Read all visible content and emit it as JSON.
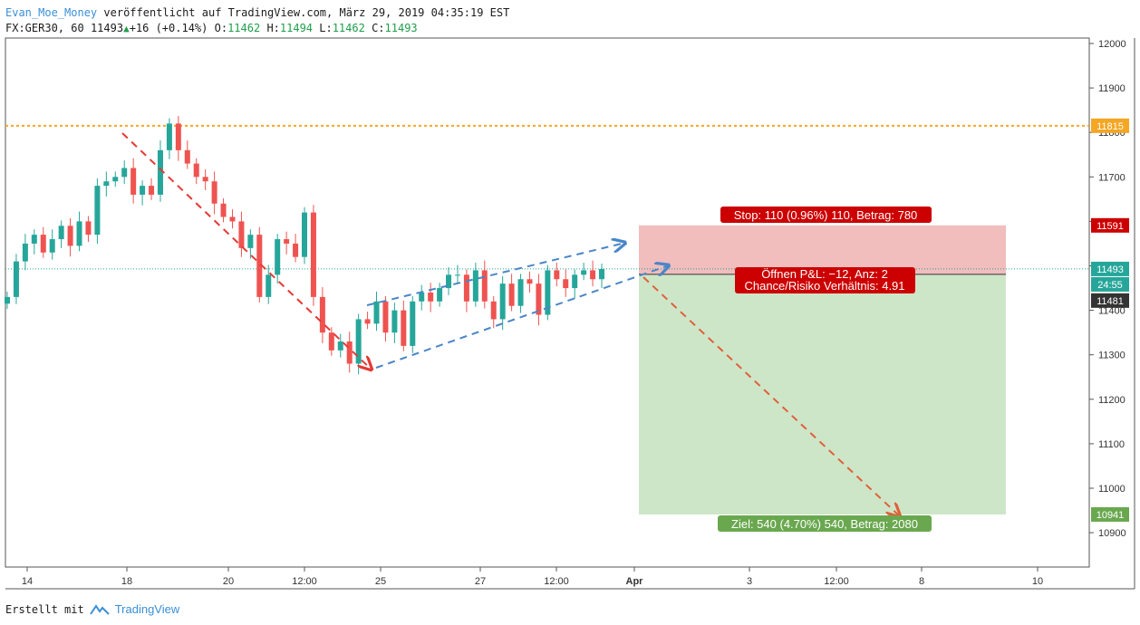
{
  "header": {
    "author": "Evan_Moe_Money",
    "published": "veröffentlicht auf TradingView.com, März 29, 2019 04:35:19 EST",
    "symbol": "FX:GER30, 60",
    "last": "11493",
    "change": "+16 (+0.14%)",
    "o_label": "O:",
    "o_value": "11462",
    "h_label": "H:",
    "h_value": "11494",
    "l_label": "L:",
    "l_value": "11462",
    "c_label": "C:",
    "c_value": "11493"
  },
  "footer": {
    "created_with": "Erstellt mit",
    "brand": "TradingView"
  },
  "colors": {
    "up": "#26a69a",
    "down": "#ef5350",
    "stop_zone": "#efb6b6",
    "target_zone": "#c9e3c2",
    "stop_tag": "#cc0000",
    "target_tag": "#6aa84f",
    "resistance": "#f5a623",
    "red_arrow": "#e53935",
    "blue_arrow": "#4a86c8",
    "orange_arrow": "#e0603a"
  },
  "chart_data": {
    "type": "candlestick",
    "y_ticks": [
      12000,
      11900,
      11800,
      11700,
      11600,
      11500,
      11400,
      11300,
      11200,
      11100,
      11000,
      10900
    ],
    "y_tick_labels": [
      "12000",
      "11900",
      "11800",
      "11700",
      "11600",
      "11500",
      "11400",
      "11300",
      "11200",
      "11100",
      "11000",
      "10900"
    ],
    "x_tick_labels": [
      "14",
      "18",
      "20",
      "12:00",
      "25",
      "27",
      "12:00",
      "Apr",
      "3",
      "12:00",
      "8",
      "10"
    ],
    "price_tags": {
      "resistance": "11815",
      "stop": "11591",
      "current": "11493",
      "countdown": "24:55",
      "entry": "11481",
      "target": "10941"
    },
    "levels": {
      "resistance": 11815,
      "stop": 11591,
      "current": 11493,
      "entry": 11481,
      "target": 10941
    },
    "close_path": [
      11430,
      11510,
      11550,
      11570,
      11530,
      11560,
      11590,
      11545,
      11600,
      11570,
      11680,
      11690,
      11700,
      11720,
      11660,
      11680,
      11660,
      11760,
      11820,
      11760,
      11730,
      11700,
      11690,
      11640,
      11610,
      11600,
      11540,
      11570,
      11430,
      11480,
      11560,
      11550,
      11520,
      11620,
      11430,
      11350,
      11310,
      11330,
      11280,
      11380,
      11370,
      11420,
      11350,
      11400,
      11320,
      11420,
      11440,
      11420,
      11450,
      11480,
      11480,
      11420,
      11490,
      11420,
      11380,
      11460,
      11410,
      11470,
      11460,
      11390,
      11490,
      11470,
      11450,
      11480,
      11490,
      11470,
      11493
    ],
    "annotations": {
      "stop_label": "Stop: 110 (0.96%) 110, Betrag: 780",
      "position_line1": "Öffnen P&L: −12, Anz: 2",
      "position_line2": "Chance/Risiko Verhältnis: 4.91",
      "target_label": "Ziel: 540 (4.70%) 540, Betrag: 2080"
    }
  }
}
